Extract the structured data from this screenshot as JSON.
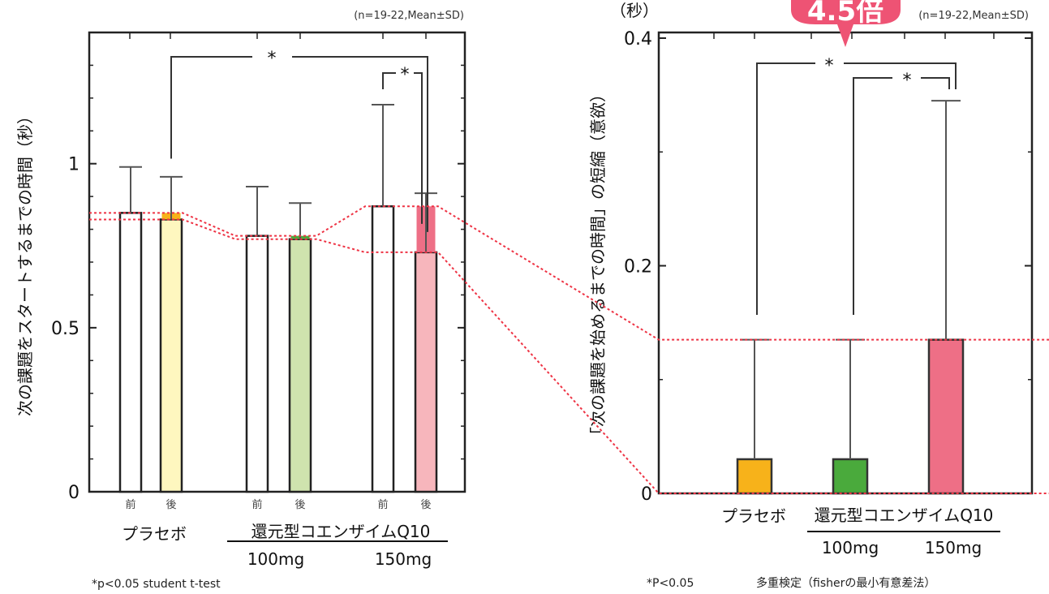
{
  "chart_data": [
    {
      "type": "bar",
      "ylabel": "次の課題をスタートするまでの時間（秒）",
      "ylim": [
        0,
        1.4
      ],
      "yticks": [
        "0",
        "0.5",
        "1"
      ],
      "n_note": "(n=19-22,Mean±SD)",
      "groups": [
        "プラセボ",
        "還元型コエンザイムQ10"
      ],
      "subgroups": [
        "100mg",
        "150mg"
      ],
      "prepost_labels": [
        "前",
        "後"
      ],
      "bars": [
        {
          "group": "プラセボ",
          "phase": "前",
          "value": 0.85,
          "sd": 0.14,
          "color": "#ffffff"
        },
        {
          "group": "プラセボ",
          "phase": "後",
          "value": 0.83,
          "sd": 0.13,
          "color": "#fef7bf",
          "delta_color": "#f7b21a",
          "delta_from": 0.85
        },
        {
          "group": "100mg",
          "phase": "前",
          "value": 0.78,
          "sd": 0.15,
          "color": "#ffffff"
        },
        {
          "group": "100mg",
          "phase": "後",
          "value": 0.77,
          "sd": 0.11,
          "color": "#cfe3ae",
          "delta_color": "#4aaa3c",
          "delta_from": 0.78
        },
        {
          "group": "150mg",
          "phase": "前",
          "value": 0.87,
          "sd": 0.31,
          "color": "#ffffff"
        },
        {
          "group": "150mg",
          "phase": "後",
          "value": 0.73,
          "sd": 0.18,
          "color": "#f7b6bc",
          "delta_color": "#ee6f86",
          "delta_from": 0.87
        }
      ],
      "significance": [
        "*",
        "*"
      ],
      "footnote": "*p<0.05 student t-test"
    },
    {
      "type": "bar",
      "ylabel": "「次の課題を始めるまでの時間」の短縮（意欲）",
      "yunit": "（秒）",
      "ylim": [
        0,
        0.4
      ],
      "yticks": [
        "0",
        "0.2",
        "0.4"
      ],
      "n_note": "(n=19-22,Mean±SD)",
      "categories": [
        "プラセボ",
        "100mg",
        "150mg"
      ],
      "group_label": "還元型コエンザイムQ10",
      "values": [
        0.03,
        0.03,
        0.135
      ],
      "errors": [
        0.105,
        0.105,
        0.21
      ],
      "colors": [
        "#f7b21a",
        "#4aaa3c",
        "#ee6f86"
      ],
      "significance": [
        "*",
        "*"
      ],
      "badge": "4.5倍",
      "footnote": "*P<0.05",
      "footnote_method": "多重検定（fisherの最小有意差法）"
    }
  ]
}
